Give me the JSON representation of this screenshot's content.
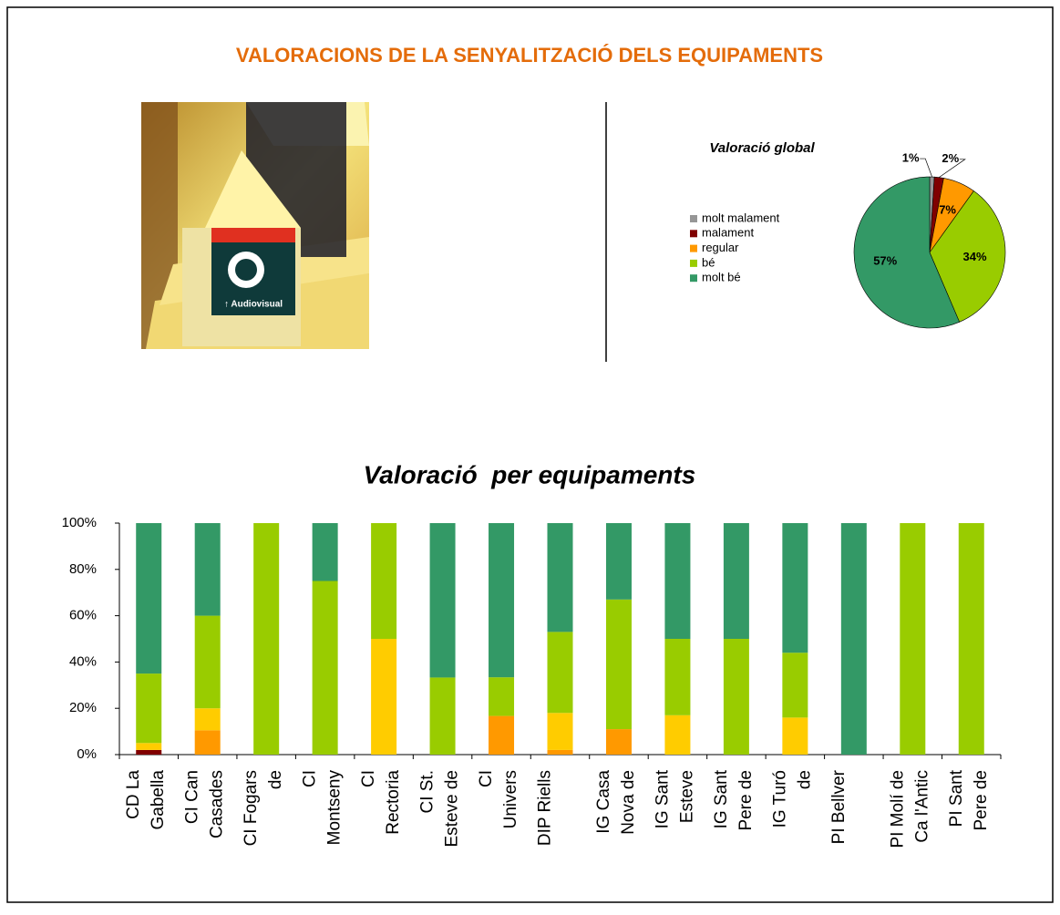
{
  "title": "VALORACIONS DE LA SENYALITZACIÓ DELS EQUIPAMENTS",
  "photo": {
    "sign_text": "↑ Audiovisual"
  },
  "chart_data": [
    {
      "type": "pie",
      "title": "Valoració global",
      "categories": [
        "molt malament",
        "malament",
        "regular",
        "bé",
        "molt bé"
      ],
      "values": [
        1,
        2,
        7,
        34,
        57
      ],
      "value_labels": [
        "1%",
        "2%",
        "7%",
        "34%",
        "57%"
      ],
      "colors": [
        "#969696",
        "#800000",
        "#ff9900",
        "#99cc00",
        "#339966"
      ],
      "legend": "left"
    },
    {
      "type": "stacked_bar",
      "title": "Valoració  per equipaments",
      "categories": [
        [
          "CD La",
          "Gabella"
        ],
        [
          "CI Can",
          "Casades"
        ],
        [
          "CI Fogars",
          "de"
        ],
        [
          "CI",
          "Montseny"
        ],
        [
          "CI",
          "Rectoria"
        ],
        [
          "CI St.",
          "Esteve de"
        ],
        [
          "CI",
          "Univers"
        ],
        [
          "DIP Riells"
        ],
        [
          "IG Casa",
          "Nova de"
        ],
        [
          "IG Sant",
          "Esteve"
        ],
        [
          "IG Sant",
          "Pere de"
        ],
        [
          "IG Turó",
          "de"
        ],
        [
          "PI Bellver"
        ],
        [
          "PI Molí de",
          "Ca l'Antic"
        ],
        [
          "PI Sant",
          "Pere de"
        ]
      ],
      "series": [
        {
          "color": "#800000",
          "values": [
            2,
            0,
            0,
            0,
            0,
            0,
            0,
            0,
            0,
            0,
            0,
            0,
            0,
            0,
            0
          ]
        },
        {
          "color": "#ff9900",
          "values": [
            0,
            10.5,
            0,
            0,
            0,
            0,
            16.7,
            2,
            11,
            0,
            0,
            0,
            0,
            0,
            0
          ]
        },
        {
          "color": "#ffcc00",
          "values": [
            3,
            9.5,
            0,
            0,
            50,
            0,
            0,
            16,
            0,
            17,
            0,
            16,
            0,
            0,
            0
          ]
        },
        {
          "color": "#99cc00",
          "values": [
            30,
            40,
            100,
            75,
            50,
            33.3,
            16.7,
            35,
            56,
            33,
            50,
            28,
            0,
            100,
            100
          ]
        },
        {
          "color": "#339966",
          "values": [
            65,
            40,
            0,
            25,
            0,
            66.7,
            66.6,
            47,
            33,
            50,
            50,
            56,
            100,
            0,
            0
          ]
        }
      ],
      "ylim": [
        0,
        100
      ],
      "yticks": [
        {
          "value": 0,
          "label": "0%"
        },
        {
          "value": 20,
          "label": "20%"
        },
        {
          "value": 40,
          "label": "40%"
        },
        {
          "value": 60,
          "label": "60%"
        },
        {
          "value": 80,
          "label": "80%"
        },
        {
          "value": 100,
          "label": "100%"
        }
      ]
    }
  ]
}
